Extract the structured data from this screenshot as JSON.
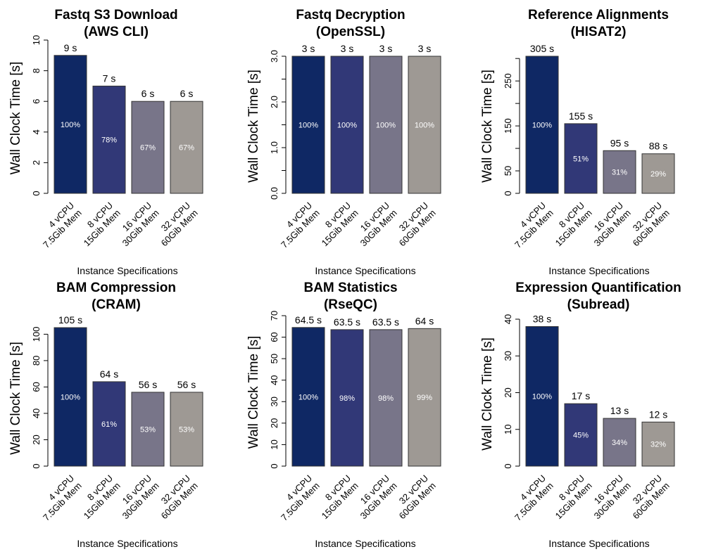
{
  "figure": {
    "bar_colors": [
      "#0f2864",
      "#313877",
      "#787589",
      "#9e9994"
    ],
    "bar_label_text_color": "#ffffff",
    "value_label_color": "#000000"
  },
  "chart_data": [
    {
      "type": "bar",
      "title": [
        "Fastq S3 Download",
        "(AWS CLI)"
      ],
      "xlabel": "Instance Specifications",
      "ylabel": "Wall Clock Time [s]",
      "categories": [
        [
          "4 vCPU",
          "7.5Gib Mem"
        ],
        [
          "8 vCPU",
          "15Gib Mem"
        ],
        [
          "16 vCPU",
          "30Gib Mem"
        ],
        [
          "32 vCPU",
          "60Gib Mem"
        ]
      ],
      "values": [
        9,
        7,
        6,
        6
      ],
      "value_labels": [
        "9 s",
        "7 s",
        "6 s",
        "6 s"
      ],
      "percent_labels": [
        "100%",
        "78%",
        "67%",
        "67%"
      ],
      "ylim": [
        0,
        10
      ],
      "yticks": [
        0,
        2,
        4,
        6,
        8,
        10
      ],
      "ytick_labels": [
        "0",
        "2",
        "4",
        "6",
        "8",
        "10"
      ],
      "grid": false
    },
    {
      "type": "bar",
      "title": [
        "Fastq Decryption",
        "(OpenSSL)"
      ],
      "xlabel": "Instance Specifications",
      "ylabel": "Wall Clock Time [s]",
      "categories": [
        [
          "4 vCPU",
          "7.5Gib Mem"
        ],
        [
          "8 vCPU",
          "15Gib Mem"
        ],
        [
          "16 vCPU",
          "30Gib Mem"
        ],
        [
          "32 vCPU",
          "60Gib Mem"
        ]
      ],
      "values": [
        3,
        3,
        3,
        3
      ],
      "value_labels": [
        "3 s",
        "3 s",
        "3 s",
        "3 s"
      ],
      "percent_labels": [
        "100%",
        "100%",
        "100%",
        "100%"
      ],
      "ylim": [
        0,
        3
      ],
      "yticks": [
        0,
        0.5,
        1,
        1.5,
        2,
        2.5,
        3
      ],
      "ytick_labels": [
        "0.0",
        "",
        "1.0",
        "",
        "2.0",
        "",
        "3.0"
      ],
      "grid": false
    },
    {
      "type": "bar",
      "title": [
        "Reference Alignments",
        "(HISAT2)"
      ],
      "xlabel": "Instance Specifications",
      "ylabel": "Wall Clock Time [s]",
      "categories": [
        [
          "4 vCPU",
          "7.5Gib Mem"
        ],
        [
          "8 vCPU",
          "15Gib Mem"
        ],
        [
          "16 vCPU",
          "30Gib Mem"
        ],
        [
          "32 vCPU",
          "60Gib Mem"
        ]
      ],
      "values": [
        305,
        155,
        95,
        88
      ],
      "value_labels": [
        "305 s",
        "155 s",
        "95 s",
        "88 s"
      ],
      "percent_labels": [
        "100%",
        "51%",
        "31%",
        "29%"
      ],
      "ylim": [
        0,
        305
      ],
      "yticks": [
        0,
        50,
        100,
        150,
        200,
        250,
        300
      ],
      "ytick_labels": [
        "0",
        "50",
        "",
        "150",
        "",
        "250",
        ""
      ],
      "grid": false
    },
    {
      "type": "bar",
      "title": [
        "BAM Compression",
        "(CRAM)"
      ],
      "xlabel": "Instance Specifications",
      "ylabel": "Wall Clock Time [s]",
      "categories": [
        [
          "4 vCPU",
          "7.5Gib Mem"
        ],
        [
          "8 vCPU",
          "15Gib Mem"
        ],
        [
          "16 vCPU",
          "30Gib Mem"
        ],
        [
          "32 vCPU",
          "60Gib Mem"
        ]
      ],
      "values": [
        105,
        64,
        56,
        56
      ],
      "value_labels": [
        "105 s",
        "64 s",
        "56 s",
        "56 s"
      ],
      "percent_labels": [
        "100%",
        "61%",
        "53%",
        "53%"
      ],
      "ylim": [
        0,
        105
      ],
      "yticks": [
        0,
        20,
        40,
        60,
        80,
        100
      ],
      "ytick_labels": [
        "0",
        "20",
        "40",
        "60",
        "80",
        "100"
      ],
      "grid": false
    },
    {
      "type": "bar",
      "title": [
        "BAM Statistics",
        "(RseQC)"
      ],
      "xlabel": "Instance Specifications",
      "ylabel": "Wall Clock Time [s]",
      "categories": [
        [
          "4 vCPU",
          "7.5Gib Mem"
        ],
        [
          "8 vCPU",
          "15Gib Mem"
        ],
        [
          "16 vCPU",
          "30Gib Mem"
        ],
        [
          "32 vCPU",
          "60Gib Mem"
        ]
      ],
      "values": [
        64.5,
        63.5,
        63.5,
        64
      ],
      "value_labels": [
        "64.5 s",
        "63.5 s",
        "63.5 s",
        "64 s"
      ],
      "percent_labels": [
        "100%",
        "98%",
        "98%",
        "99%"
      ],
      "ylim": [
        0,
        70
      ],
      "yticks": [
        0,
        10,
        20,
        30,
        40,
        50,
        60,
        70
      ],
      "ytick_labels": [
        "0",
        "10",
        "20",
        "30",
        "40",
        "50",
        "60",
        "70"
      ],
      "grid": false
    },
    {
      "type": "bar",
      "title": [
        "Expression Quantification",
        "(Subread)"
      ],
      "xlabel": "Instance Specifications",
      "ylabel": "Wall Clock Time [s]",
      "categories": [
        [
          "4 vCPU",
          "7.5Gib Mem"
        ],
        [
          "8 vCPU",
          "15Gib Mem"
        ],
        [
          "16 vCPU",
          "30Gib Mem"
        ],
        [
          "32 vCPU",
          "60Gib Mem"
        ]
      ],
      "values": [
        38,
        17,
        13,
        12
      ],
      "value_labels": [
        "38 s",
        "17 s",
        "13 s",
        "12 s"
      ],
      "percent_labels": [
        "100%",
        "45%",
        "34%",
        "32%"
      ],
      "ylim": [
        0,
        40
      ],
      "yticks": [
        0,
        10,
        20,
        30,
        40
      ],
      "ytick_labels": [
        "0",
        "10",
        "20",
        "30",
        "40"
      ],
      "grid": false
    }
  ]
}
